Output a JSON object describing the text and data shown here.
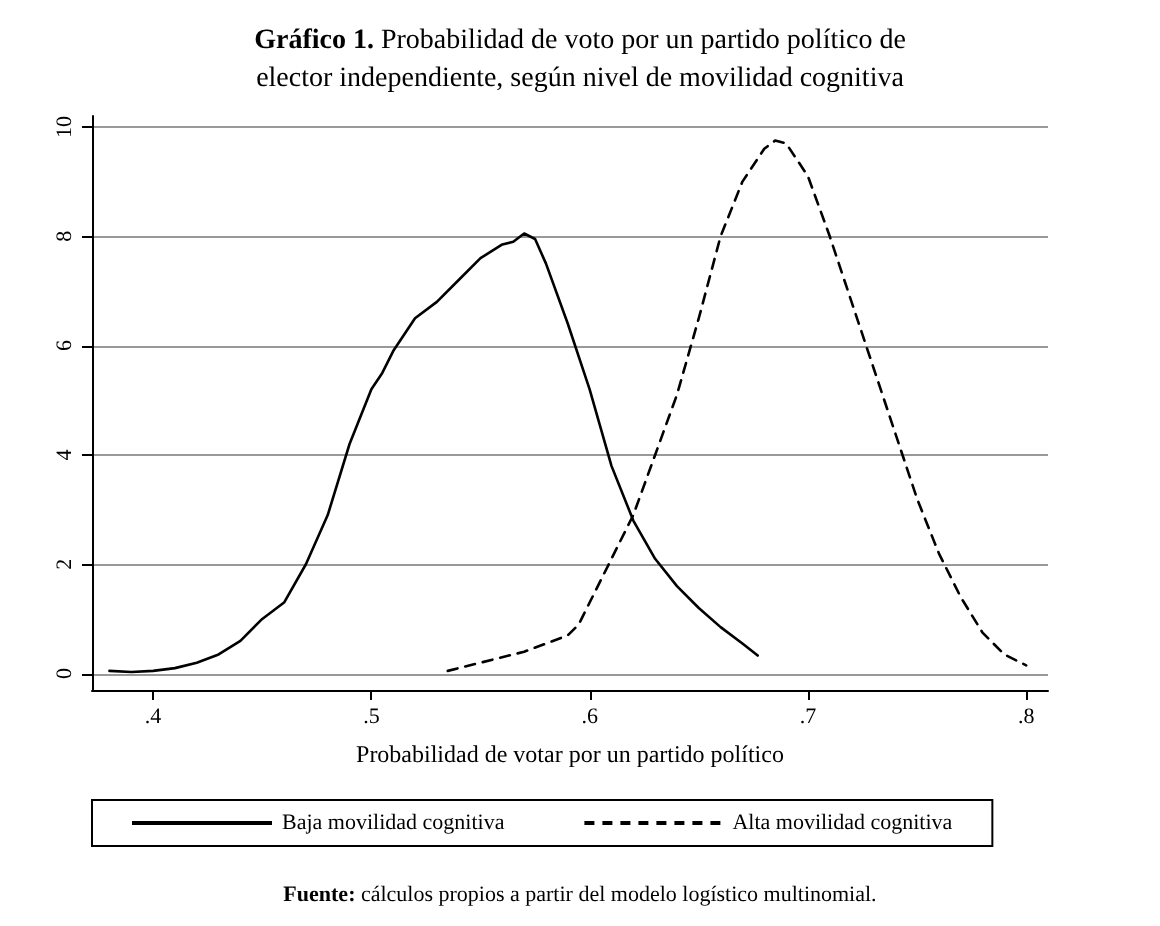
{
  "chart_data": {
    "type": "line",
    "title": "Gráfico 1. Probabilidad de voto por un partido político de elector independiente, según nivel de movilidad cognitiva",
    "xlabel": "Probabilidad de votar por un partido político",
    "annotations": [
      "Fuente: cálculos propios a partir del modelo logístico multinomial."
    ],
    "xlim": [
      0.372,
      0.81
    ],
    "xticks": [
      {
        "value": 0.4,
        "label": ".4"
      },
      {
        "value": 0.5,
        "label": ".5"
      },
      {
        "value": 0.6,
        "label": ".6"
      },
      {
        "value": 0.7,
        "label": ".7"
      },
      {
        "value": 0.8,
        "label": ".8"
      }
    ],
    "ylim": [
      -0.3,
      10.2
    ],
    "yticks": [
      0,
      2,
      4,
      6,
      8,
      10
    ],
    "grid": "y",
    "legend": "bottom",
    "marker": "none",
    "series": [
      {
        "name": "Baja movilidad cognitiva",
        "color": "#000000",
        "line_style": "solid",
        "x": [
          0.38,
          0.39,
          0.4,
          0.41,
          0.42,
          0.43,
          0.44,
          0.45,
          0.455,
          0.46,
          0.47,
          0.48,
          0.49,
          0.5,
          0.505,
          0.51,
          0.52,
          0.53,
          0.54,
          0.55,
          0.56,
          0.565,
          0.57,
          0.575,
          0.58,
          0.59,
          0.6,
          0.605,
          0.61,
          0.62,
          0.63,
          0.64,
          0.65,
          0.66,
          0.67,
          0.677
        ],
        "values": [
          0.05,
          0.03,
          0.05,
          0.1,
          0.2,
          0.35,
          0.6,
          1.0,
          1.15,
          1.3,
          2.0,
          2.9,
          4.2,
          5.2,
          5.5,
          5.9,
          6.5,
          6.8,
          7.2,
          7.6,
          7.85,
          7.9,
          8.05,
          7.95,
          7.5,
          6.4,
          5.2,
          4.5,
          3.8,
          2.8,
          2.1,
          1.6,
          1.2,
          0.85,
          0.55,
          0.33
        ]
      },
      {
        "name": "Alta movilidad cognitiva",
        "color": "#000000",
        "line_style": "dashed",
        "x": [
          0.535,
          0.55,
          0.57,
          0.59,
          0.595,
          0.6,
          0.61,
          0.62,
          0.63,
          0.64,
          0.65,
          0.66,
          0.67,
          0.68,
          0.685,
          0.69,
          0.7,
          0.71,
          0.72,
          0.73,
          0.74,
          0.75,
          0.76,
          0.77,
          0.78,
          0.79,
          0.8
        ],
        "values": [
          0.05,
          0.2,
          0.4,
          0.7,
          0.9,
          1.3,
          2.1,
          2.9,
          4.0,
          5.1,
          6.5,
          8.0,
          9.0,
          9.6,
          9.75,
          9.7,
          9.1,
          8.0,
          6.8,
          5.6,
          4.4,
          3.2,
          2.2,
          1.4,
          0.75,
          0.35,
          0.15
        ]
      }
    ]
  }
}
